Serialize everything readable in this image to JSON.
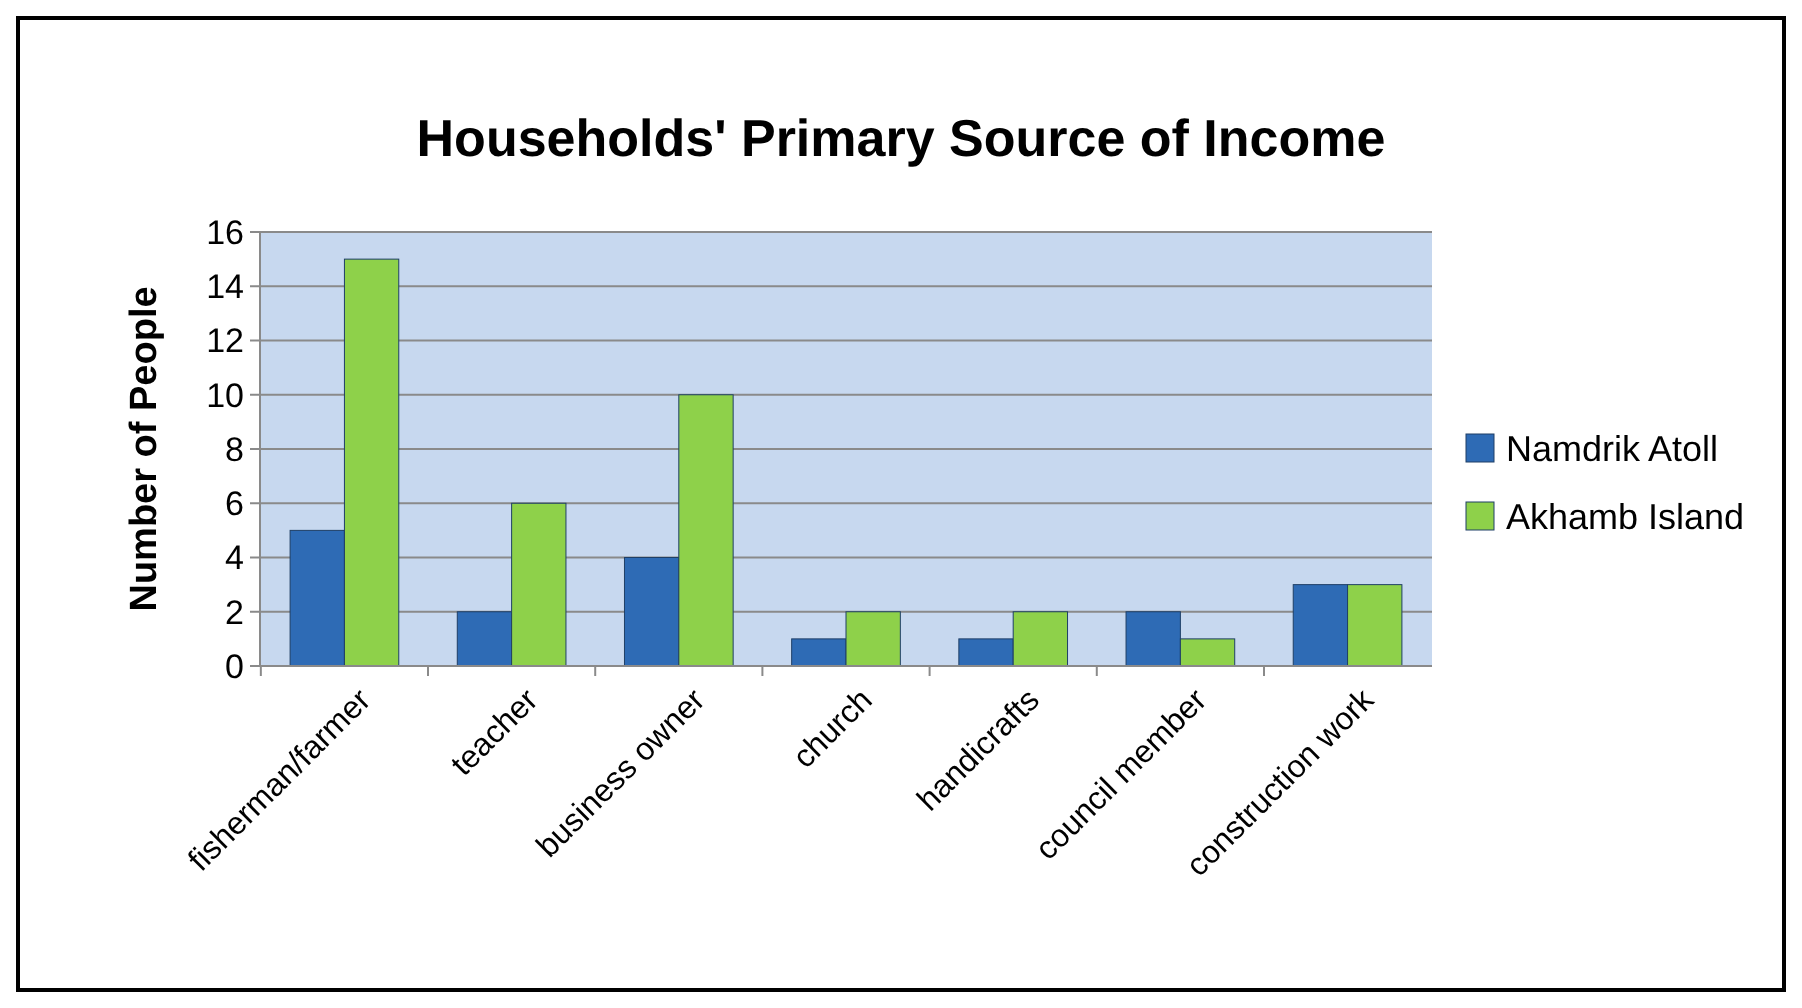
{
  "chart_data": {
    "type": "bar",
    "title": "Households' Primary Source of Income",
    "ylabel": "Number of People",
    "categories": [
      "fisherman/farmer",
      "teacher",
      "business owner",
      "church",
      "handicrafts",
      "council member",
      "construction work"
    ],
    "series": [
      {
        "name": "Namdrik Atoll",
        "color": "#2e6bb5",
        "values": [
          5,
          2,
          4,
          1,
          1,
          2,
          3
        ]
      },
      {
        "name": "Akhamb Island",
        "color": "#8ed14a",
        "values": [
          15,
          6,
          10,
          2,
          2,
          1,
          3
        ]
      }
    ],
    "ylim": [
      0,
      16
    ],
    "yticks": [
      0,
      2,
      4,
      6,
      8,
      10,
      12,
      14,
      16
    ],
    "grid": "y",
    "legend": "right"
  }
}
